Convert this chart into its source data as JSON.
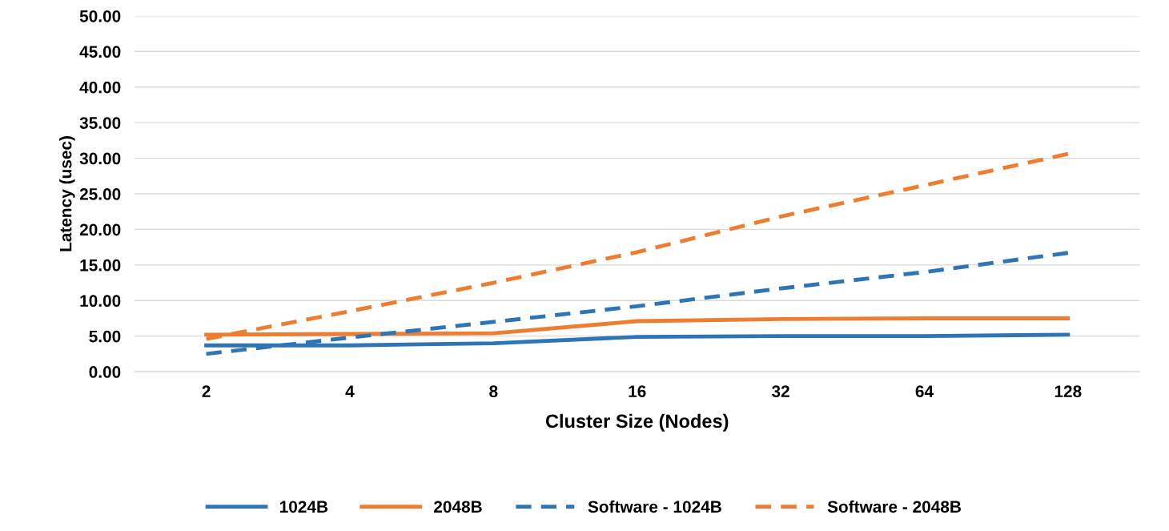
{
  "chart_data": {
    "type": "line",
    "xlabel": "Cluster Size (Nodes)",
    "ylabel": "Latency (usec)",
    "categories": [
      "2",
      "4",
      "8",
      "16",
      "32",
      "64",
      "128"
    ],
    "series": [
      {
        "name": "1024B",
        "color": "#2e75b6",
        "line_style": "solid",
        "values": [
          3.7,
          3.7,
          4.0,
          4.9,
          5.0,
          5.0,
          5.2
        ]
      },
      {
        "name": "2048B",
        "color": "#ed7d31",
        "line_style": "solid",
        "values": [
          5.2,
          5.3,
          5.4,
          7.1,
          7.4,
          7.5,
          7.5
        ]
      },
      {
        "name": "Software - 1024B",
        "color": "#2e75b6",
        "line_style": "dashed",
        "values": [
          2.5,
          4.8,
          7.0,
          9.2,
          11.7,
          14.0,
          16.7
        ]
      },
      {
        "name": "Software - 2048B",
        "color": "#ed7d31",
        "line_style": "dashed",
        "values": [
          4.6,
          8.5,
          12.5,
          16.8,
          21.8,
          26.2,
          30.6
        ]
      }
    ],
    "ylim": [
      0,
      50
    ],
    "yticks": [
      {
        "value": 0,
        "label": "0.00"
      },
      {
        "value": 5,
        "label": "5.00"
      },
      {
        "value": 10,
        "label": "10.00"
      },
      {
        "value": 15,
        "label": "15.00"
      },
      {
        "value": 20,
        "label": "20.00"
      },
      {
        "value": 25,
        "label": "25.00"
      },
      {
        "value": 30,
        "label": "30.00"
      },
      {
        "value": 35,
        "label": "35.00"
      },
      {
        "value": 40,
        "label": "40.00"
      },
      {
        "value": 45,
        "label": "45.00"
      },
      {
        "value": 50,
        "label": "50.00"
      }
    ],
    "grid": "y",
    "legend": "bottom",
    "marker": "none"
  }
}
